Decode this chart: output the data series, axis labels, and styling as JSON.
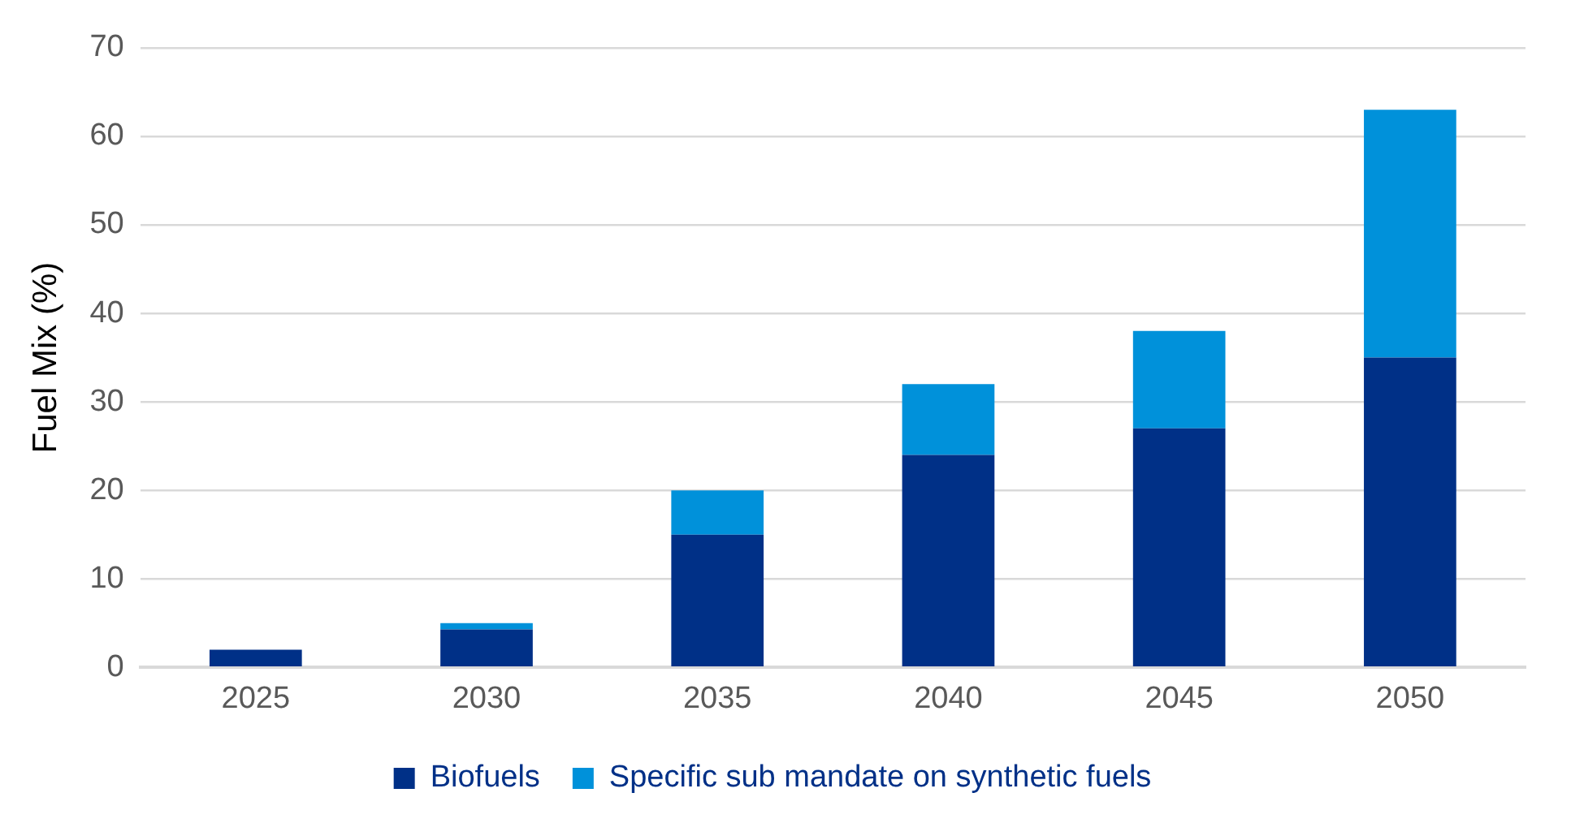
{
  "chart_data": {
    "type": "bar",
    "ylabel": "Fuel Mix (%)",
    "categories": [
      "2025",
      "2030",
      "2035",
      "2040",
      "2045",
      "2050"
    ],
    "series": [
      {
        "name": "Biofuels",
        "color": "#003087",
        "values": [
          2,
          4.3,
          15,
          24,
          27,
          35
        ]
      },
      {
        "name": "Specific sub mandate on synthetic fuels",
        "color": "#0091da",
        "values": [
          0,
          0.7,
          5,
          8,
          11,
          28
        ]
      }
    ],
    "stacked": true,
    "ylim": [
      0,
      70
    ],
    "yticks": [
      0,
      10,
      20,
      30,
      40,
      50,
      60,
      70
    ],
    "grid": "y",
    "legend": "bottom"
  }
}
